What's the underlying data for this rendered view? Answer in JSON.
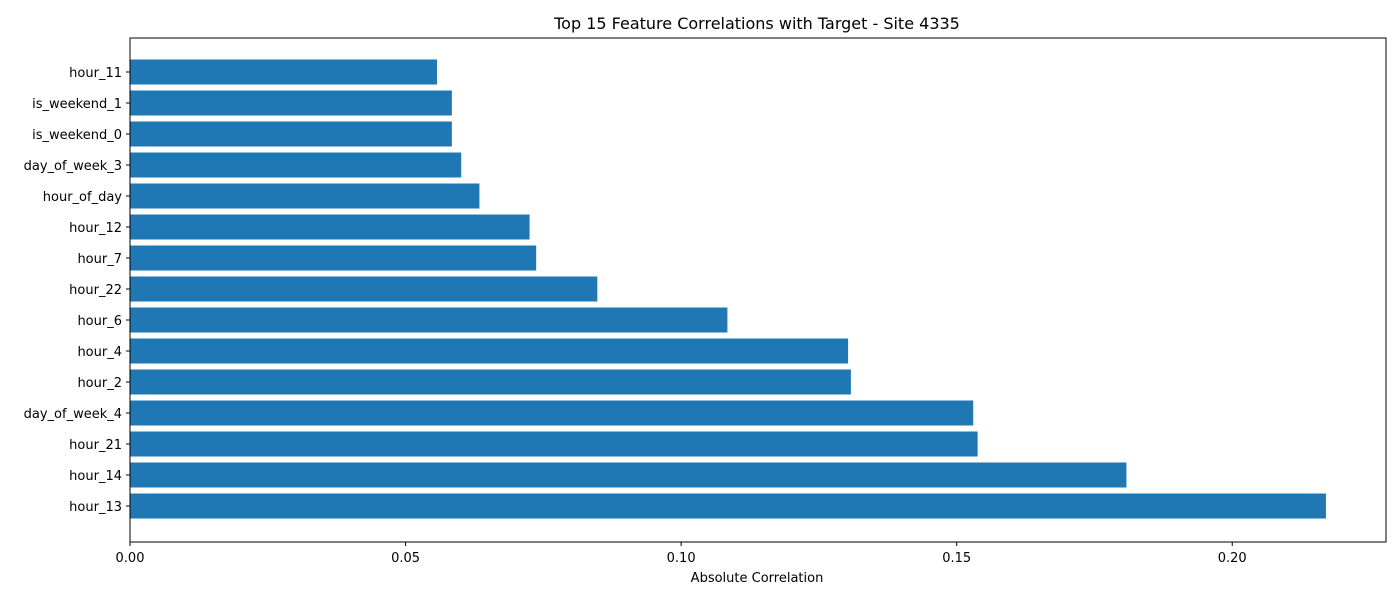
{
  "chart_data": {
    "type": "bar",
    "orientation": "horizontal",
    "title": "Top 15 Feature Correlations with Target - Site 4335",
    "xlabel": "Absolute Correlation",
    "ylabel": "",
    "xlim": [
      0,
      0.2279
    ],
    "xticks": [
      0.0,
      0.05,
      0.1,
      0.15,
      0.2
    ],
    "xtick_labels": [
      "0.00",
      "0.05",
      "0.10",
      "0.15",
      "0.20"
    ],
    "grid": false,
    "bar_color": "#1f77b4",
    "categories": [
      "hour_13",
      "hour_14",
      "hour_21",
      "day_of_week_4",
      "hour_2",
      "hour_4",
      "hour_6",
      "hour_22",
      "hour_7",
      "hour_12",
      "hour_of_day",
      "day_of_week_3",
      "is_weekend_0",
      "is_weekend_1",
      "hour_11"
    ],
    "values": [
      0.217,
      0.1808,
      0.1538,
      0.153,
      0.1308,
      0.1303,
      0.1084,
      0.0848,
      0.0737,
      0.0725,
      0.0634,
      0.0601,
      0.0584,
      0.0584,
      0.0557
    ]
  }
}
